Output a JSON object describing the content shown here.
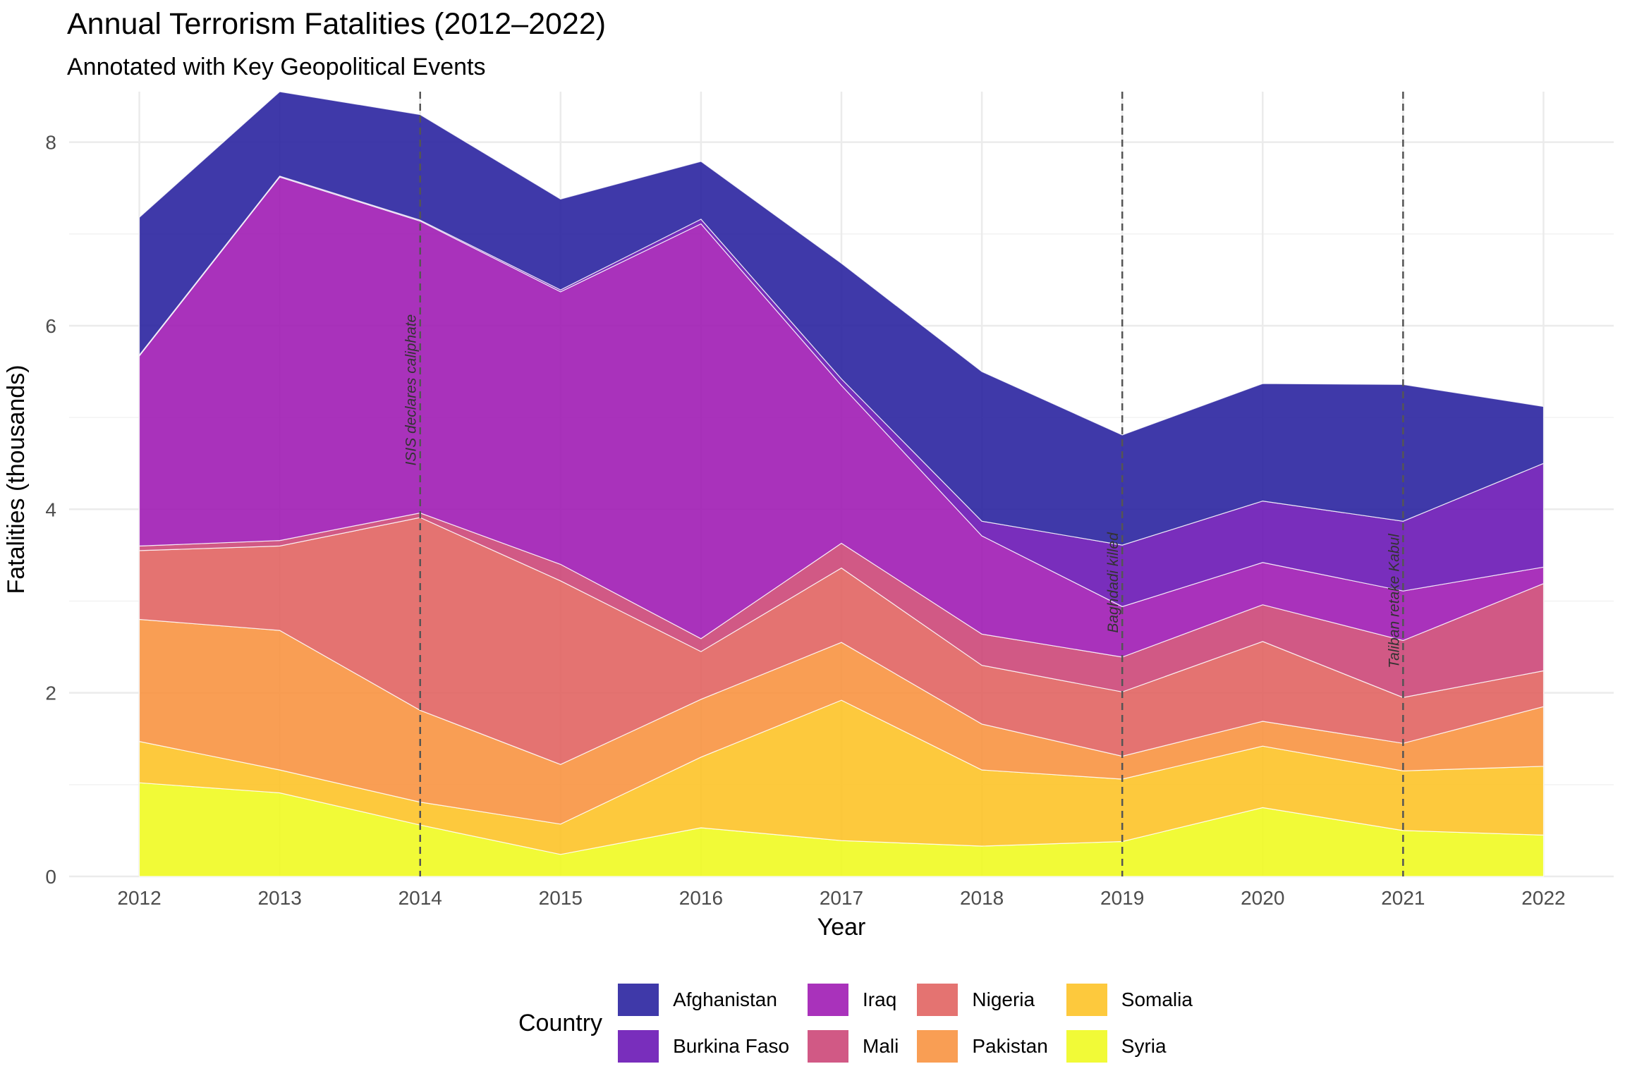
{
  "title": "Annual Terrorism Fatalities (2012–2022)",
  "subtitle": "Annotated with Key Geopolitical Events",
  "chart_data": {
    "type": "area",
    "stacked": true,
    "xlabel": "Year",
    "ylabel": "Fatalities (thousands)",
    "x": [
      2012,
      2013,
      2014,
      2015,
      2016,
      2017,
      2018,
      2019,
      2020,
      2021,
      2022
    ],
    "xlim": [
      2011.5,
      2022.5
    ],
    "ylim": [
      0,
      8.55
    ],
    "yticks": [
      0,
      2,
      4,
      6,
      8
    ],
    "grid": true,
    "legend_position": "bottom",
    "legend_title": "Country",
    "series": [
      {
        "name": "Syria",
        "color": "#F0F921",
        "values": [
          1.02,
          0.91,
          0.56,
          0.24,
          0.53,
          0.39,
          0.33,
          0.38,
          0.75,
          0.5,
          0.45
        ]
      },
      {
        "name": "Somalia",
        "color": "#FDC328",
        "values": [
          0.45,
          0.25,
          0.25,
          0.33,
          0.77,
          1.53,
          0.83,
          0.68,
          0.67,
          0.65,
          0.75
        ]
      },
      {
        "name": "Pakistan",
        "color": "#F89441",
        "values": [
          1.33,
          1.52,
          1.0,
          0.65,
          0.63,
          0.63,
          0.5,
          0.25,
          0.27,
          0.3,
          0.65
        ]
      },
      {
        "name": "Nigeria",
        "color": "#E16462",
        "values": [
          0.75,
          0.92,
          2.1,
          2.0,
          0.52,
          0.81,
          0.64,
          0.7,
          0.87,
          0.5,
          0.39
        ]
      },
      {
        "name": "Mali",
        "color": "#CC4778",
        "values": [
          0.05,
          0.06,
          0.05,
          0.18,
          0.14,
          0.27,
          0.34,
          0.38,
          0.4,
          0.62,
          0.95
        ]
      },
      {
        "name": "Iraq",
        "color": "#A01CB4",
        "values": [
          2.07,
          3.96,
          3.18,
          2.97,
          4.52,
          1.72,
          1.07,
          0.55,
          0.46,
          0.54,
          0.18
        ]
      },
      {
        "name": "Burkina Faso",
        "color": "#6A17B5",
        "values": [
          0.01,
          0.01,
          0.01,
          0.02,
          0.05,
          0.07,
          0.16,
          0.67,
          0.67,
          0.76,
          1.13
        ]
      },
      {
        "name": "Afghanistan",
        "color": "#2A23A0",
        "values": [
          1.5,
          0.92,
          1.15,
          0.99,
          0.63,
          1.26,
          1.63,
          1.2,
          1.28,
          1.49,
          0.62
        ]
      }
    ],
    "legend_order": [
      "Afghanistan",
      "Burkina Faso",
      "Iraq",
      "Mali",
      "Nigeria",
      "Pakistan",
      "Somalia",
      "Syria"
    ],
    "annotations": [
      {
        "x": 2014,
        "label": "ISIS declares caliphate",
        "label_y": 5.3
      },
      {
        "x": 2019,
        "label": "Baghdadi killed",
        "label_y": 3.2
      },
      {
        "x": 2021,
        "label": "Taliban retake Kabul",
        "label_y": 3.0
      }
    ]
  }
}
